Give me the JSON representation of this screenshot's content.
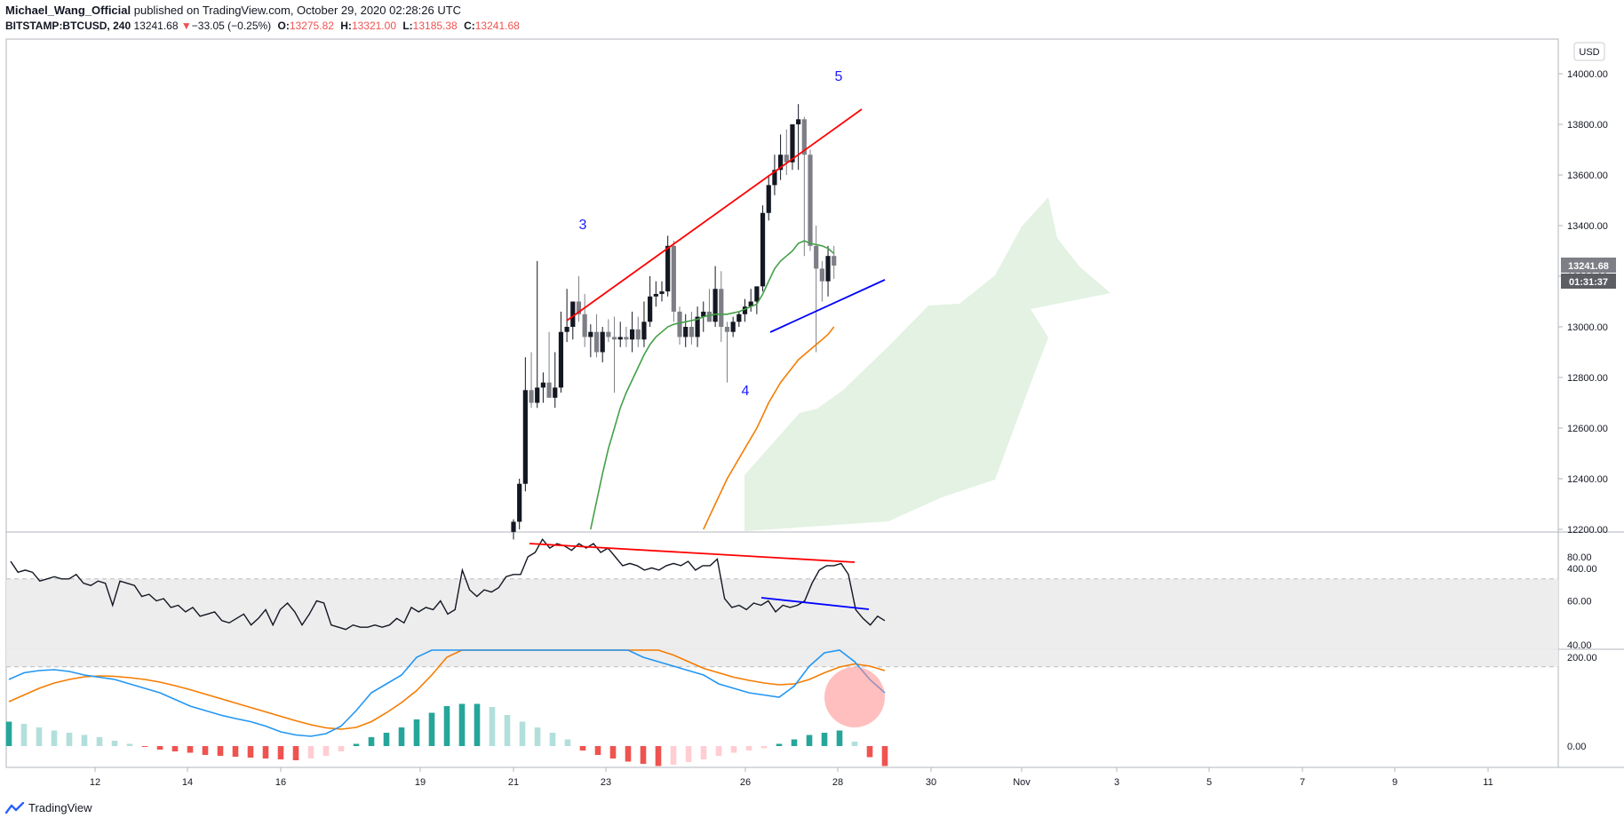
{
  "header": {
    "author": "Michael_Wang_Official",
    "published_text": "published on TradingView.com, October 29, 2020 02:28:26 UTC",
    "symbol": "BITSTAMP:BTCUSD, 240",
    "last": "13241.68",
    "change_arrow": "▼",
    "change": "−33.05 (−0.25%)",
    "open_label": "O:",
    "open": "13275.82",
    "high_label": "H:",
    "high": "13321.00",
    "low_label": "L:",
    "low": "13185.38",
    "close_label": "C:",
    "close": "13241.68"
  },
  "currency_badge": "USD",
  "price_badge": "13241.68",
  "countdown_badge": "01:31:37",
  "footer": {
    "brand": "TradingView"
  },
  "colors": {
    "up": "#131722",
    "down": "#7e7f86",
    "ema": "#43a047",
    "ema_slow": "#f57c00",
    "cloud": "#e3f2e3",
    "trend_red": "#ff0000",
    "trend_blue": "#0000ff",
    "macd": "#2196f3",
    "signal": "#f57c00",
    "circle": "#ff8a8a"
  },
  "chart_data": [
    {
      "type": "candlestick",
      "title": "BTCUSD 4h",
      "ylim": [
        12200,
        14100
      ],
      "y_ticks": [
        "12200.00",
        "12400.00",
        "12600.00",
        "12800.00",
        "13000.00",
        "13200.00",
        "13400.00",
        "13600.00",
        "13800.00",
        "14000.00"
      ],
      "x_ticks": [
        "12",
        "14",
        "16",
        "19",
        "21",
        "23",
        "26",
        "28",
        "30",
        "Nov",
        "3",
        "5",
        "7",
        "9",
        "11"
      ],
      "candles": [
        [
          12190,
          12240,
          12160,
          12230
        ],
        [
          12230,
          12400,
          12200,
          12380
        ],
        [
          12380,
          12880,
          12350,
          12750
        ],
        [
          12750,
          12900,
          12680,
          12700
        ],
        [
          12700,
          13260,
          12680,
          12760
        ],
        [
          12760,
          12820,
          12700,
          12780
        ],
        [
          12780,
          12980,
          12720,
          12720
        ],
        [
          12720,
          12900,
          12680,
          12760
        ],
        [
          12760,
          13060,
          12740,
          12980
        ],
        [
          12980,
          13150,
          12940,
          13000
        ],
        [
          13000,
          13090,
          12950,
          13100
        ],
        [
          13100,
          13200,
          13020,
          13050
        ],
        [
          13050,
          13130,
          12920,
          12960
        ],
        [
          12960,
          13010,
          12880,
          12980
        ],
        [
          12980,
          13050,
          12880,
          12900
        ],
        [
          12900,
          13000,
          12860,
          12980
        ],
        [
          12980,
          13030,
          12940,
          12960
        ],
        [
          12960,
          13040,
          12740,
          12950
        ],
        [
          12950,
          13020,
          12920,
          12960
        ],
        [
          12960,
          13000,
          12920,
          12950
        ],
        [
          12950,
          13060,
          12900,
          12990
        ],
        [
          12990,
          13040,
          12920,
          12950
        ],
        [
          12950,
          13100,
          12920,
          13020
        ],
        [
          13020,
          13200,
          13000,
          13120
        ],
        [
          13120,
          13180,
          13080,
          13130
        ],
        [
          13130,
          13180,
          13100,
          13140
        ],
        [
          13140,
          13360,
          13120,
          13320
        ],
        [
          13320,
          13340,
          13020,
          13060
        ],
        [
          13060,
          13080,
          12930,
          12960
        ],
        [
          12960,
          13050,
          12920,
          13000
        ],
        [
          13000,
          13060,
          12930,
          12960
        ],
        [
          12960,
          13080,
          12920,
          13040
        ],
        [
          13040,
          13100,
          12980,
          13060
        ],
        [
          13060,
          13150,
          13020,
          13020
        ],
        [
          13020,
          13240,
          13000,
          13150
        ],
        [
          13150,
          13220,
          12940,
          13000
        ],
        [
          13000,
          13020,
          12780,
          12980
        ],
        [
          12980,
          13040,
          12960,
          13020
        ],
        [
          13020,
          13060,
          13000,
          13050
        ],
        [
          13050,
          13110,
          13020,
          13080
        ],
        [
          13080,
          13150,
          13060,
          13100
        ],
        [
          13100,
          13150,
          13050,
          13160
        ],
        [
          13160,
          13480,
          13140,
          13450
        ],
        [
          13450,
          13600,
          13420,
          13560
        ],
        [
          13560,
          13680,
          13520,
          13620
        ],
        [
          13620,
          13760,
          13580,
          13680
        ],
        [
          13680,
          13780,
          13600,
          13650
        ],
        [
          13650,
          13800,
          13620,
          13800
        ],
        [
          13800,
          13880,
          13620,
          13820
        ],
        [
          13820,
          13830,
          13280,
          13680
        ],
        [
          13680,
          13700,
          13300,
          13320
        ],
        [
          13320,
          13400,
          12900,
          13230
        ],
        [
          13230,
          13260,
          13100,
          13180
        ],
        [
          13180,
          13320,
          13120,
          13280
        ],
        [
          13280,
          13320,
          13190,
          13242
        ]
      ],
      "ema_fast": [
        null,
        null,
        null,
        null,
        null,
        null,
        null,
        null,
        null,
        null,
        null,
        null,
        null,
        12200,
        12310,
        12420,
        12520,
        12600,
        12680,
        12740,
        12790,
        12840,
        12890,
        12930,
        12960,
        12980,
        13000,
        13010,
        13015,
        13020,
        13025,
        13030,
        13040,
        13045,
        13050,
        13050,
        13050,
        13055,
        13060,
        13070,
        13080,
        13090,
        13130,
        13180,
        13230,
        13260,
        13280,
        13300,
        13330,
        13340,
        13330,
        13325,
        13320,
        13310,
        13290
      ],
      "ema_slow": [
        null,
        null,
        null,
        null,
        null,
        null,
        null,
        null,
        null,
        null,
        null,
        null,
        null,
        null,
        null,
        null,
        null,
        null,
        null,
        null,
        null,
        null,
        null,
        null,
        null,
        null,
        null,
        null,
        null,
        null,
        null,
        null,
        12200,
        12250,
        12300,
        12350,
        12400,
        12440,
        12480,
        12520,
        12560,
        12600,
        12650,
        12700,
        12740,
        12780,
        12810,
        12840,
        12870,
        12890,
        12910,
        12930,
        12950,
        12970,
        13000
      ],
      "annotations": [
        "3",
        "4",
        "5"
      ]
    },
    {
      "type": "line",
      "title": "RSI",
      "ylim": [
        30,
        90
      ],
      "y_ticks": [
        "40.00",
        "60.00",
        "80.00"
      ],
      "band": [
        30,
        70
      ],
      "values": [
        78,
        73,
        74,
        73,
        69,
        70,
        71,
        70,
        70,
        72,
        68,
        67,
        69,
        68,
        58,
        69,
        68,
        67,
        62,
        63,
        60,
        61,
        57,
        58,
        55,
        57,
        53,
        54,
        55,
        51,
        50,
        52,
        54,
        49,
        52,
        56,
        49,
        56,
        59,
        55,
        49,
        54,
        60,
        59,
        49,
        48,
        47,
        49,
        48,
        48,
        49,
        48,
        49,
        52,
        50,
        57,
        55,
        57,
        56,
        60,
        54,
        56,
        74,
        65,
        62,
        65,
        64,
        66,
        71,
        72,
        72,
        80,
        82,
        88,
        84,
        86,
        85,
        83,
        86,
        84,
        86,
        82,
        84,
        80,
        76,
        77,
        76,
        74,
        75,
        74,
        76,
        77,
        76,
        78,
        74,
        76,
        76,
        79,
        61,
        57,
        58,
        56,
        59,
        58,
        60,
        55,
        58,
        57,
        58,
        60,
        68,
        74,
        76,
        76,
        77,
        72,
        56,
        52,
        49,
        53,
        51
      ]
    },
    {
      "type": "bar",
      "title": "MACD",
      "ylim": [
        -90,
        450
      ],
      "y_ticks": [
        "0.00",
        "200.00",
        "400.00"
      ],
      "macd": [
        150,
        165,
        170,
        172,
        168,
        160,
        155,
        150,
        140,
        130,
        120,
        105,
        90,
        80,
        70,
        62,
        55,
        45,
        32,
        25,
        22,
        28,
        45,
        80,
        120,
        140,
        160,
        200,
        260,
        330,
        370,
        390,
        385,
        365,
        345,
        330,
        320,
        310,
        300,
        280,
        250,
        220,
        200,
        190,
        180,
        170,
        160,
        140,
        130,
        120,
        115,
        110,
        135,
        180,
        210,
        220,
        190,
        150,
        120
      ],
      "signal": [
        100,
        115,
        130,
        142,
        150,
        156,
        158,
        157,
        154,
        150,
        144,
        136,
        127,
        117,
        107,
        97,
        87,
        77,
        67,
        57,
        48,
        41,
        38,
        42,
        55,
        75,
        98,
        125,
        160,
        200,
        245,
        290,
        325,
        345,
        348,
        342,
        332,
        320,
        308,
        292,
        275,
        258,
        240,
        222,
        205,
        190,
        175,
        165,
        155,
        148,
        142,
        138,
        140,
        150,
        165,
        178,
        185,
        180,
        170
      ],
      "hist": [
        55,
        50,
        42,
        35,
        30,
        25,
        20,
        12,
        5,
        -2,
        -8,
        -12,
        -15,
        -20,
        -22,
        -24,
        -26,
        -28,
        -30,
        -32,
        -28,
        -22,
        -12,
        5,
        20,
        30,
        42,
        60,
        75,
        90,
        95,
        95,
        88,
        70,
        55,
        42,
        30,
        15,
        -10,
        -20,
        -28,
        -35,
        -40,
        -45,
        -42,
        -36,
        -30,
        -22,
        -15,
        -10,
        -5,
        5,
        15,
        25,
        30,
        35,
        10,
        -25,
        -45
      ]
    }
  ]
}
